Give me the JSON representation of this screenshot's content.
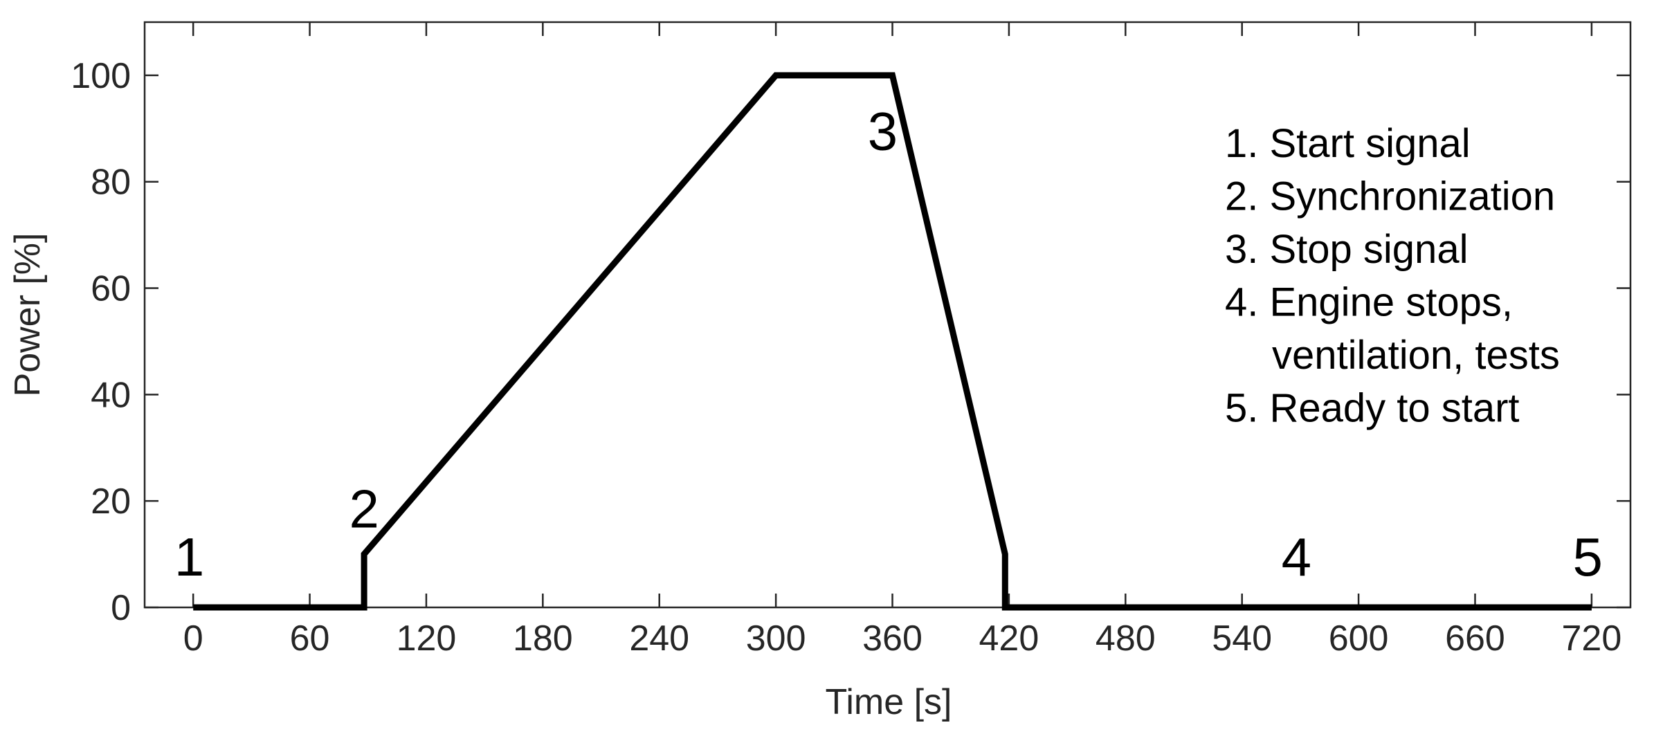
{
  "chart_data": {
    "type": "line",
    "title": "",
    "xlabel": "Time [s]",
    "ylabel": "Power [%]",
    "xlim": [
      -25,
      740
    ],
    "ylim": [
      0,
      110
    ],
    "xticks": [
      0,
      60,
      120,
      180,
      240,
      300,
      360,
      420,
      480,
      540,
      600,
      660,
      720
    ],
    "yticks": [
      0,
      20,
      40,
      60,
      80,
      100
    ],
    "grid": false,
    "line_color": "#000000",
    "series": [
      {
        "x": [
          0,
          88,
          88,
          300,
          360,
          418,
          418,
          720
        ],
        "y": [
          0,
          0,
          10,
          100,
          100,
          10,
          0,
          0
        ]
      }
    ],
    "point_labels": [
      {
        "text": "1",
        "x": -2,
        "y": 6
      },
      {
        "text": "2",
        "x": 88,
        "y": 15
      },
      {
        "text": "3",
        "x": 355,
        "y": 86
      },
      {
        "text": "4",
        "x": 568,
        "y": 6
      },
      {
        "text": "5",
        "x": 718,
        "y": 6
      }
    ],
    "annotations": [
      "1. Start signal",
      "2. Synchronization",
      "3. Stop signal",
      "4. Engine stops,",
      "ventilation, tests",
      "5. Ready to start"
    ]
  }
}
